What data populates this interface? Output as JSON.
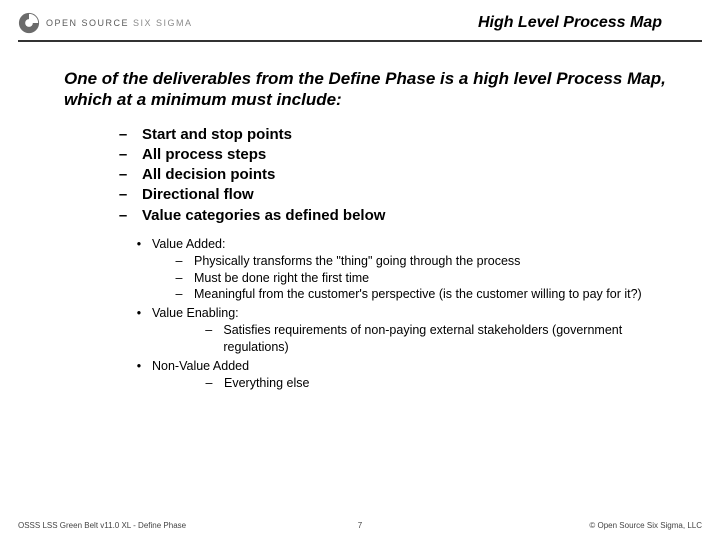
{
  "brand": {
    "line1": "OPEN SOURCE",
    "line2": "SIX SIGMA",
    "mark_fill_dark": "#6b6b6b",
    "mark_fill_light": "#ffffff"
  },
  "title": "High Level Process Map",
  "intro": "One of the deliverables from the Define Phase is a high level Process Map, which at a minimum must include:",
  "level1": [
    "Start and stop points",
    "All process steps",
    "All decision points",
    "Directional flow",
    "Value categories as defined below"
  ],
  "categories": [
    {
      "label": "Value Added:",
      "deep": false,
      "items": [
        "Physically transforms the \"thing\" going through the process",
        "Must be done right the first time",
        "Meaningful from the customer's perspective (is the customer willing to pay for it?)"
      ]
    },
    {
      "label": "Value Enabling:",
      "deep": true,
      "items": [
        "Satisfies requirements of non-paying external stakeholders (government regulations)"
      ]
    },
    {
      "label": "Non-Value Added",
      "deep": true,
      "items": [
        "Everything else"
      ]
    }
  ],
  "footer": {
    "left": "OSSS LSS Green Belt v11.0 XL - Define Phase",
    "page": "7",
    "right": "© Open Source Six Sigma, LLC"
  },
  "colors": {
    "rule": "#333333",
    "text": "#000000",
    "bg": "#ffffff"
  }
}
